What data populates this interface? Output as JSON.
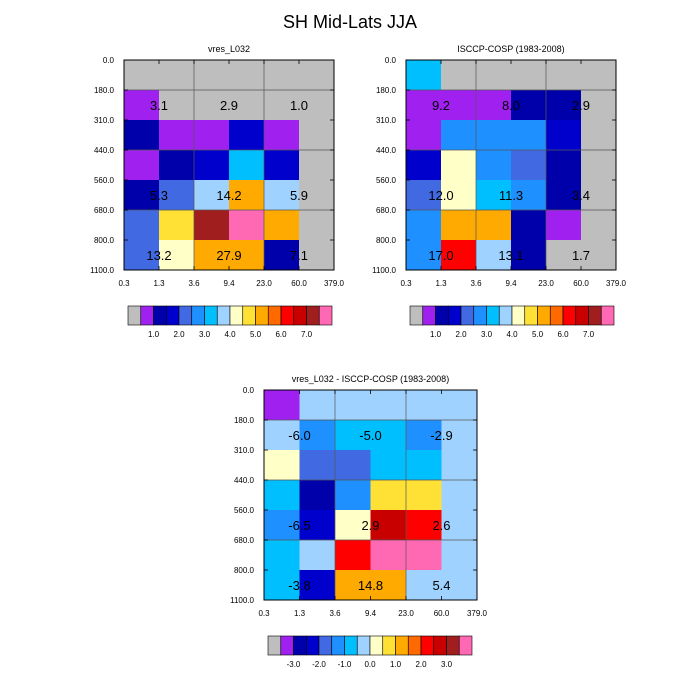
{
  "title": "SH Mid-Lats JJA",
  "palette": [
    "#bebebe",
    "#a020f0",
    "#0000aa",
    "#0000cd",
    "#4169e1",
    "#1e90ff",
    "#00bfff",
    "#a0d2ff",
    "#ffffc8",
    "#ffe135",
    "#ffaa00",
    "#ff6a00",
    "#ff0000",
    "#c80000",
    "#a01e1e",
    "#ff69b4"
  ],
  "chart_data": [
    {
      "type": "heatmap",
      "title": "vres_L032",
      "x_ticks": [
        "0.3",
        "1.3",
        "3.6",
        "9.4",
        "23.0",
        "60.0",
        "379.0"
      ],
      "y_ticks": [
        "0.0",
        "180.0",
        "310.0",
        "440.0",
        "560.0",
        "680.0",
        "800.0",
        "1100.0"
      ],
      "cells": [
        [
          0,
          0,
          0,
          0,
          0,
          0
        ],
        [
          1,
          0,
          0,
          0,
          0,
          0
        ],
        [
          2,
          1,
          1,
          3,
          1,
          0
        ],
        [
          1,
          2,
          3,
          6,
          3,
          0
        ],
        [
          2,
          4,
          7,
          10,
          7,
          0
        ],
        [
          4,
          9,
          14,
          15,
          10,
          0
        ],
        [
          4,
          8,
          10,
          10,
          2,
          0
        ]
      ],
      "totals": [
        {
          "label": "3.1",
          "col": 1,
          "row": 1
        },
        {
          "label": "2.9",
          "col": 3,
          "row": 1
        },
        {
          "label": "1.0",
          "col": 5,
          "row": 1
        },
        {
          "label": "5.3",
          "col": 1,
          "row": 4
        },
        {
          "label": "14.2",
          "col": 3,
          "row": 4
        },
        {
          "label": "5.9",
          "col": 5,
          "row": 4
        },
        {
          "label": "13.2",
          "col": 1,
          "row": 6
        },
        {
          "label": "27.9",
          "col": 3,
          "row": 6
        },
        {
          "label": "7.1",
          "col": 5,
          "row": 6
        }
      ],
      "colorbar_labels": [
        "1.0",
        "2.0",
        "3.0",
        "4.0",
        "5.0",
        "6.0",
        "7.0"
      ]
    },
    {
      "type": "heatmap",
      "title": "ISCCP-COSP (1983-2008)",
      "x_ticks": [
        "0.3",
        "1.3",
        "3.6",
        "9.4",
        "23.0",
        "60.0",
        "379.0"
      ],
      "y_ticks": [
        "0.0",
        "180.0",
        "310.0",
        "440.0",
        "560.0",
        "680.0",
        "800.0",
        "1100.0"
      ],
      "cells": [
        [
          6,
          0,
          0,
          0,
          0,
          0
        ],
        [
          1,
          1,
          1,
          2,
          2,
          0
        ],
        [
          1,
          5,
          5,
          5,
          3,
          0
        ],
        [
          3,
          8,
          5,
          4,
          2,
          0
        ],
        [
          4,
          8,
          6,
          5,
          2,
          0
        ],
        [
          5,
          10,
          10,
          2,
          1,
          0
        ],
        [
          5,
          12,
          7,
          2,
          0,
          0
        ]
      ],
      "totals": [
        {
          "label": "9.2",
          "col": 1,
          "row": 1
        },
        {
          "label": "8.0",
          "col": 3,
          "row": 1
        },
        {
          "label": "2.9",
          "col": 5,
          "row": 1
        },
        {
          "label": "12.0",
          "col": 1,
          "row": 4
        },
        {
          "label": "11.3",
          "col": 3,
          "row": 4
        },
        {
          "label": "3.4",
          "col": 5,
          "row": 4
        },
        {
          "label": "17.0",
          "col": 1,
          "row": 6
        },
        {
          "label": "13.1",
          "col": 3,
          "row": 6
        },
        {
          "label": "1.7",
          "col": 5,
          "row": 6
        }
      ],
      "colorbar_labels": [
        "1.0",
        "2.0",
        "3.0",
        "4.0",
        "5.0",
        "6.0",
        "7.0"
      ]
    },
    {
      "type": "heatmap",
      "title": "vres_L032 - ISCCP-COSP (1983-2008)",
      "x_ticks": [
        "0.3",
        "1.3",
        "3.6",
        "9.4",
        "23.0",
        "60.0",
        "379.0"
      ],
      "y_ticks": [
        "0.0",
        "180.0",
        "310.0",
        "440.0",
        "560.0",
        "680.0",
        "800.0",
        "1100.0"
      ],
      "cells": [
        [
          1,
          7,
          7,
          7,
          7,
          7
        ],
        [
          7,
          5,
          6,
          6,
          5,
          7
        ],
        [
          8,
          4,
          4,
          6,
          6,
          7
        ],
        [
          6,
          2,
          5,
          9,
          9,
          7
        ],
        [
          5,
          3,
          8,
          13,
          12,
          7
        ],
        [
          6,
          7,
          12,
          15,
          15,
          7
        ],
        [
          6,
          3,
          10,
          10,
          7,
          7
        ]
      ],
      "totals": [
        {
          "label": "-6.0",
          "col": 1,
          "row": 1
        },
        {
          "label": "-5.0",
          "col": 3,
          "row": 1
        },
        {
          "label": "-2.9",
          "col": 5,
          "row": 1
        },
        {
          "label": "-6.5",
          "col": 1,
          "row": 4
        },
        {
          "label": "2.9",
          "col": 3,
          "row": 4
        },
        {
          "label": "2.6",
          "col": 5,
          "row": 4
        },
        {
          "label": "-3.8",
          "col": 1,
          "row": 6
        },
        {
          "label": "14.8",
          "col": 3,
          "row": 6
        },
        {
          "label": "5.4",
          "col": 5,
          "row": 6
        }
      ],
      "colorbar_labels": [
        "-3.0",
        "-2.0",
        "-1.0",
        "0.0",
        "1.0",
        "2.0",
        "3.0"
      ]
    }
  ]
}
